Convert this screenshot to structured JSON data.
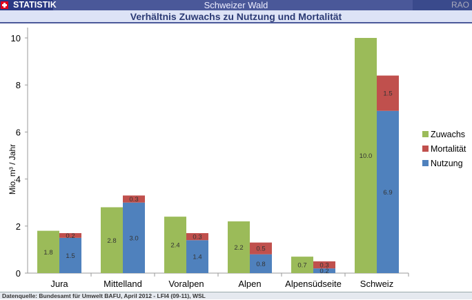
{
  "header": {
    "brand": "STATISTIK",
    "app_title": "Schweizer Wald",
    "right_label": "RAO",
    "chart_title": "Verhältnis Zuwachs zu Nutzung und Mortalität"
  },
  "footer": {
    "source": "Datenquelle: Bundesamt für Umwelt BAFU, April 2012 -  LFI4 (09-11), WSL"
  },
  "chart_data": {
    "type": "bar",
    "title": "Verhältnis Zuwachs zu Nutzung und Mortalität",
    "ylabel": "Mio. m³ / Jahr",
    "xlabel": "",
    "ylim": [
      0,
      10
    ],
    "yticks": [
      0,
      2,
      4,
      6,
      8,
      10
    ],
    "grid": false,
    "legend": "right",
    "categories": [
      "Jura",
      "Mittelland",
      "Voralpen",
      "Alpen",
      "Alpensüdseite",
      "Schweiz"
    ],
    "series": [
      {
        "name": "Zuwachs",
        "color": "#9bbb59",
        "stack": "a",
        "values": [
          1.8,
          2.8,
          2.4,
          2.2,
          0.7,
          10.0
        ]
      },
      {
        "name": "Nutzung",
        "color": "#4f81bd",
        "stack": "b",
        "values": [
          1.5,
          3.0,
          1.4,
          0.8,
          0.2,
          6.9
        ]
      },
      {
        "name": "Mortalität",
        "color": "#c0504d",
        "stack": "b",
        "values": [
          0.2,
          0.3,
          0.3,
          0.5,
          0.3,
          1.5
        ]
      }
    ],
    "legend_order": [
      "Zuwachs",
      "Mortalität",
      "Nutzung"
    ]
  }
}
